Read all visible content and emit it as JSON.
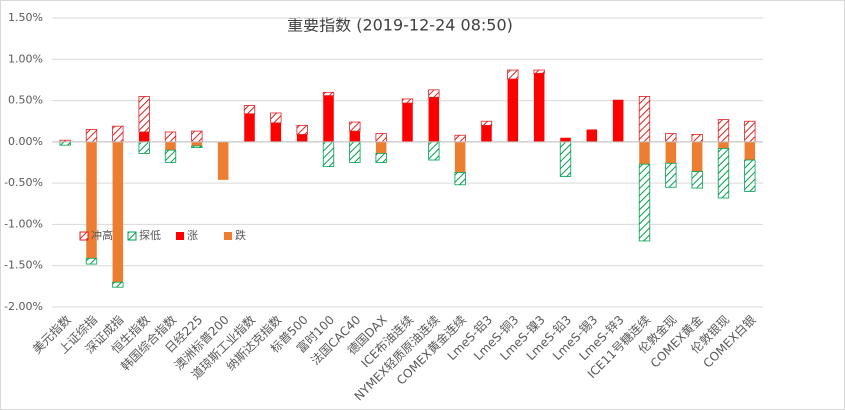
{
  "chart_data": {
    "type": "stacked-bar",
    "title": "重要指数 (2019-12-24 08:50)",
    "categories": [
      "美元指数",
      "上证综指",
      "深证成指",
      "恒生指数",
      "韩国综合指数",
      "日经225",
      "澳洲标普200",
      "道琼斯工业指数",
      "纳斯达克指数",
      "标普500",
      "富时100",
      "法国CAC40",
      "德国DAX",
      "ICE布油连续",
      "NYMEX轻质原油连续",
      "COMEX黄金连续",
      "LmeS-铝3",
      "LmeS-铜3",
      "LmeS-镍3",
      "LmeS-铅3",
      "LmeS-锡3",
      "LmeS-锌3",
      "ICE11号糖连续",
      "伦敦金现",
      "COMEX黄金",
      "伦敦银现",
      "COMEX白银"
    ],
    "series": [
      {
        "name": "冲高",
        "color": "#e02020",
        "hatched": true,
        "values": [
          0.02,
          0.15,
          0.19,
          0.43,
          0.12,
          0.13,
          0,
          0.1,
          0.12,
          0.11,
          0.04,
          0.11,
          0.1,
          0.05,
          0.09,
          0.08,
          0.05,
          0.11,
          0.04,
          0,
          0,
          0,
          0.55,
          0.1,
          0.09,
          0.27,
          0.25
        ]
      },
      {
        "name": "探低",
        "color": "#00a050",
        "hatched": true,
        "values": [
          -0.04,
          -0.07,
          -0.06,
          -0.14,
          -0.15,
          -0.02,
          0,
          0,
          0,
          0,
          -0.3,
          -0.25,
          -0.11,
          0,
          -0.22,
          -0.15,
          0,
          0,
          0,
          -0.42,
          0,
          0,
          -0.93,
          -0.29,
          -0.2,
          -0.6,
          -0.38
        ]
      },
      {
        "name": "涨",
        "color": "#ff0000",
        "hatched": false,
        "values": [
          0,
          0,
          0,
          0.12,
          0,
          0,
          0,
          0.34,
          0.23,
          0.09,
          0.56,
          0.13,
          0,
          0.47,
          0.54,
          0,
          0.2,
          0.76,
          0.83,
          0.05,
          0.15,
          0.51,
          0,
          0,
          0,
          0,
          0
        ]
      },
      {
        "name": "跌",
        "color": "#ed7d31",
        "hatched": false,
        "values": [
          0,
          -1.41,
          -1.7,
          0,
          -0.1,
          -0.05,
          -0.46,
          0,
          0,
          0,
          0,
          0,
          -0.14,
          0,
          0,
          -0.37,
          0,
          0,
          0,
          0,
          0,
          0,
          -0.27,
          -0.26,
          -0.36,
          -0.08,
          -0.22
        ]
      }
    ],
    "ylim": [
      -2,
      1.5
    ],
    "yticks": [
      {
        "value": -2,
        "label": "-2.00%"
      },
      {
        "value": -1.5,
        "label": "-1.50%"
      },
      {
        "value": -1,
        "label": "-1.00%"
      },
      {
        "value": -0.5,
        "label": "-0.50%"
      },
      {
        "value": 0,
        "label": "0.00%"
      },
      {
        "value": 0.5,
        "label": "0.50%"
      },
      {
        "value": 1,
        "label": "1.00%"
      },
      {
        "value": 1.5,
        "label": "1.50%"
      }
    ],
    "grid": true
  }
}
